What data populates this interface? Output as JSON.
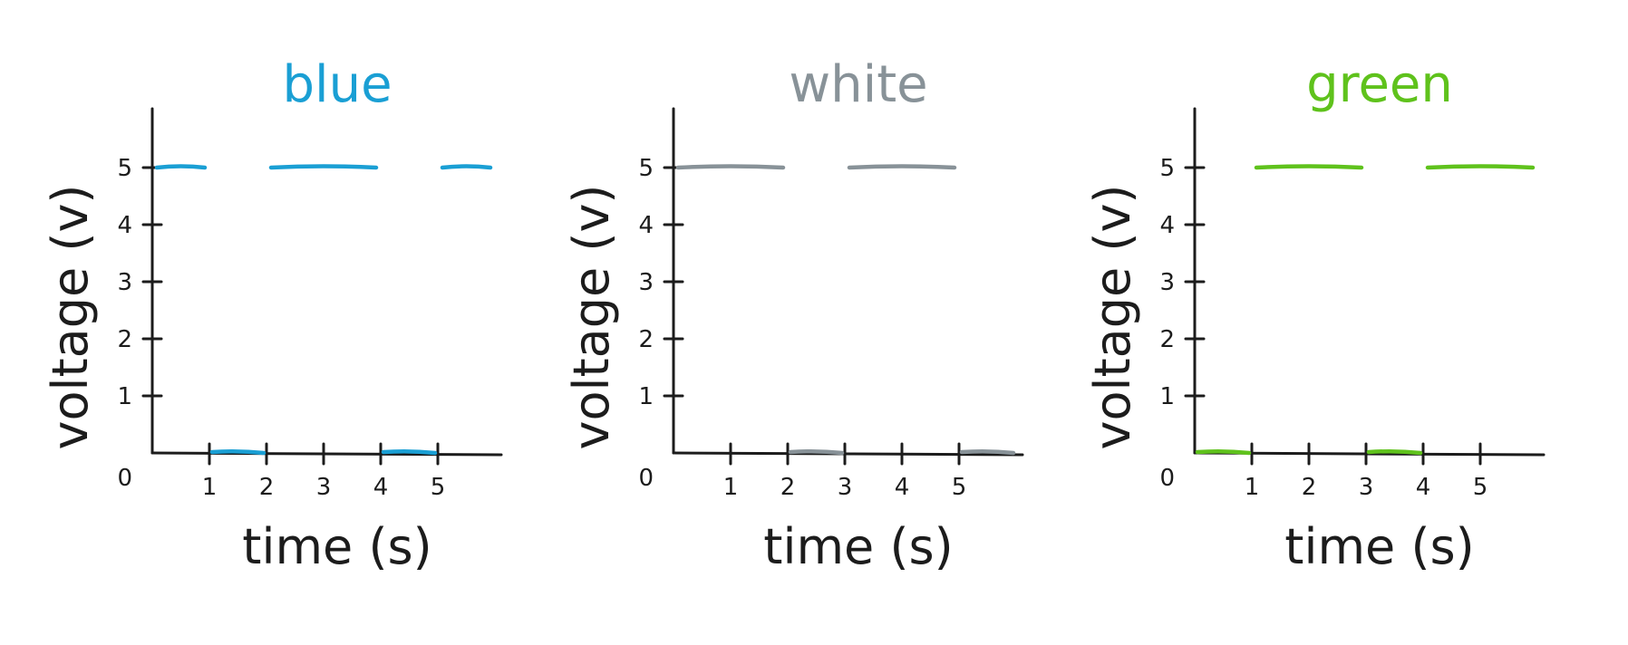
{
  "chart_data": [
    {
      "type": "line",
      "title": "blue",
      "color": "#1a9fd4",
      "xlabel": "time (s)",
      "ylabel": "voltage (v)",
      "x_ticks": [
        "1",
        "2",
        "3",
        "4",
        "5"
      ],
      "y_ticks": [
        "1",
        "2",
        "3",
        "4",
        "5"
      ],
      "origin_label": "0",
      "xlim": [
        0,
        6
      ],
      "ylim": [
        0,
        5
      ],
      "segments": [
        {
          "x": [
            0,
            1
          ],
          "y": [
            5,
            5
          ]
        },
        {
          "x": [
            1,
            2
          ],
          "y": [
            0,
            0
          ]
        },
        {
          "x": [
            2,
            4
          ],
          "y": [
            5,
            5
          ]
        },
        {
          "x": [
            4,
            5
          ],
          "y": [
            0,
            0
          ]
        },
        {
          "x": [
            5,
            6
          ],
          "y": [
            5,
            5
          ]
        }
      ]
    },
    {
      "type": "line",
      "title": "white",
      "color": "#889298",
      "xlabel": "time (s)",
      "ylabel": "voltage (v)",
      "x_ticks": [
        "1",
        "2",
        "3",
        "4",
        "5"
      ],
      "y_ticks": [
        "1",
        "2",
        "3",
        "4",
        "5"
      ],
      "origin_label": "0",
      "xlim": [
        0,
        6
      ],
      "ylim": [
        0,
        5
      ],
      "segments": [
        {
          "x": [
            0,
            2
          ],
          "y": [
            5,
            5
          ]
        },
        {
          "x": [
            2,
            3
          ],
          "y": [
            0,
            0
          ]
        },
        {
          "x": [
            3,
            5
          ],
          "y": [
            5,
            5
          ]
        },
        {
          "x": [
            5,
            6
          ],
          "y": [
            0,
            0
          ]
        }
      ]
    },
    {
      "type": "line",
      "title": "green",
      "color": "#5fc21c",
      "xlabel": "time (s)",
      "ylabel": "voltage (v)",
      "x_ticks": [
        "1",
        "2",
        "3",
        "4",
        "5"
      ],
      "y_ticks": [
        "1",
        "2",
        "3",
        "4",
        "5"
      ],
      "origin_label": "0",
      "xlim": [
        0,
        6
      ],
      "ylim": [
        0,
        5
      ],
      "segments": [
        {
          "x": [
            0,
            1
          ],
          "y": [
            0,
            0
          ]
        },
        {
          "x": [
            1,
            3
          ],
          "y": [
            5,
            5
          ]
        },
        {
          "x": [
            3,
            4
          ],
          "y": [
            0,
            0
          ]
        },
        {
          "x": [
            4,
            6
          ],
          "y": [
            5,
            5
          ]
        }
      ]
    }
  ]
}
